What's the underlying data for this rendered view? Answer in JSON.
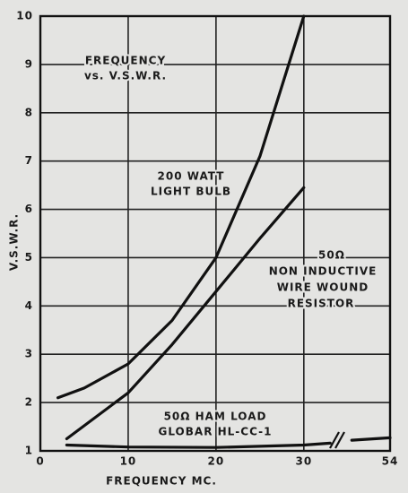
{
  "chart_data": {
    "type": "line",
    "xlabel": "FREQUENCY MC.",
    "ylabel": "V.S.W.R.",
    "xlim": [
      0,
      54
    ],
    "x_break": [
      34,
      50
    ],
    "xticks": [
      0,
      10,
      20,
      30,
      54
    ],
    "ylim": [
      1,
      10
    ],
    "yticks": [
      1,
      2,
      3,
      4,
      5,
      6,
      7,
      8,
      9,
      10
    ],
    "grid": true,
    "annotations": [
      [
        "FREQUENCY",
        "vs. V.S.W.R."
      ],
      [
        "200 WATT",
        "LIGHT BULB"
      ],
      [
        "50Ω",
        "NON INDUCTIVE",
        "WIRE WOUND",
        "RESISTOR"
      ],
      [
        "50Ω HAM LOAD",
        "GLOBAR HL-CC-1"
      ]
    ],
    "series": [
      {
        "color": "#111111",
        "x": [
          2,
          5,
          10,
          15,
          20,
          25,
          30
        ],
        "values": [
          2.1,
          2.3,
          2.8,
          3.7,
          5.0,
          7.1,
          10
        ]
      },
      {
        "color": "#111111",
        "x": [
          3,
          10,
          15,
          20,
          25,
          30
        ],
        "values": [
          1.25,
          2.2,
          3.2,
          4.3,
          5.4,
          6.45
        ]
      },
      {
        "color": "#111111",
        "x": [
          3,
          10,
          20,
          30,
          33,
          34,
          51,
          54
        ],
        "values": [
          1.12,
          1.08,
          1.07,
          1.12,
          1.16,
          null,
          1.22,
          1.27
        ]
      }
    ]
  }
}
